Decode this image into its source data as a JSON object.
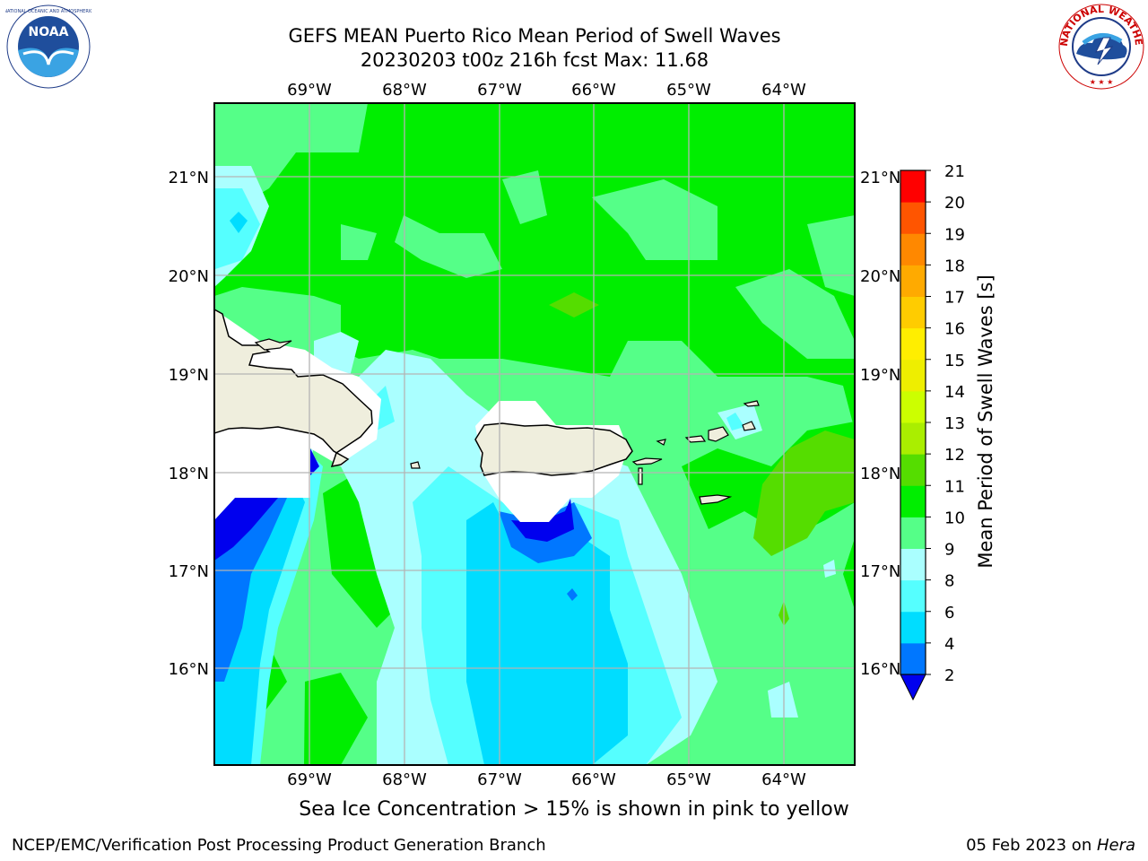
{
  "header": {
    "title_line1": "GEFS MEAN Puerto Rico Mean Period of Swell Waves",
    "title_line2": "20230203 t00z 216h fcst   Max: 11.68"
  },
  "map": {
    "lon_labels": [
      "69°W",
      "68°W",
      "67°W",
      "66°W",
      "65°W",
      "64°W"
    ],
    "lat_labels": [
      "21°N",
      "20°N",
      "19°N",
      "18°N",
      "17°N",
      "16°N"
    ],
    "land_color": "#efeedd",
    "ocean_base_color": "#00ee00"
  },
  "colorbar": {
    "label": "Mean Period of Swell Waves [s]",
    "ticks": [
      "2",
      "4",
      "6",
      "8",
      "9",
      "10",
      "11",
      "12",
      "13",
      "14",
      "15",
      "16",
      "17",
      "18",
      "19",
      "20",
      "21"
    ],
    "colors": [
      "#0000ee",
      "#0077ff",
      "#00ddff",
      "#55ffff",
      "#aaffff",
      "#55ff88",
      "#00ee00",
      "#55dd00",
      "#aaee00",
      "#ccff00",
      "#eeee00",
      "#ffee00",
      "#ffcc00",
      "#ffaa00",
      "#ff8800",
      "#ff5500",
      "#ff0000"
    ]
  },
  "note": "Sea Ice Concentration > 15% is shown in pink to yellow",
  "footer": {
    "left": "NCEP/EMC/Verification Post Processing Product Generation Branch",
    "right_date": "05 Feb 2023 on ",
    "right_host": "Hera"
  },
  "logos": {
    "noaa_text": "NOAA",
    "nws_text": "NATIONAL WEATHER SERVICE"
  }
}
